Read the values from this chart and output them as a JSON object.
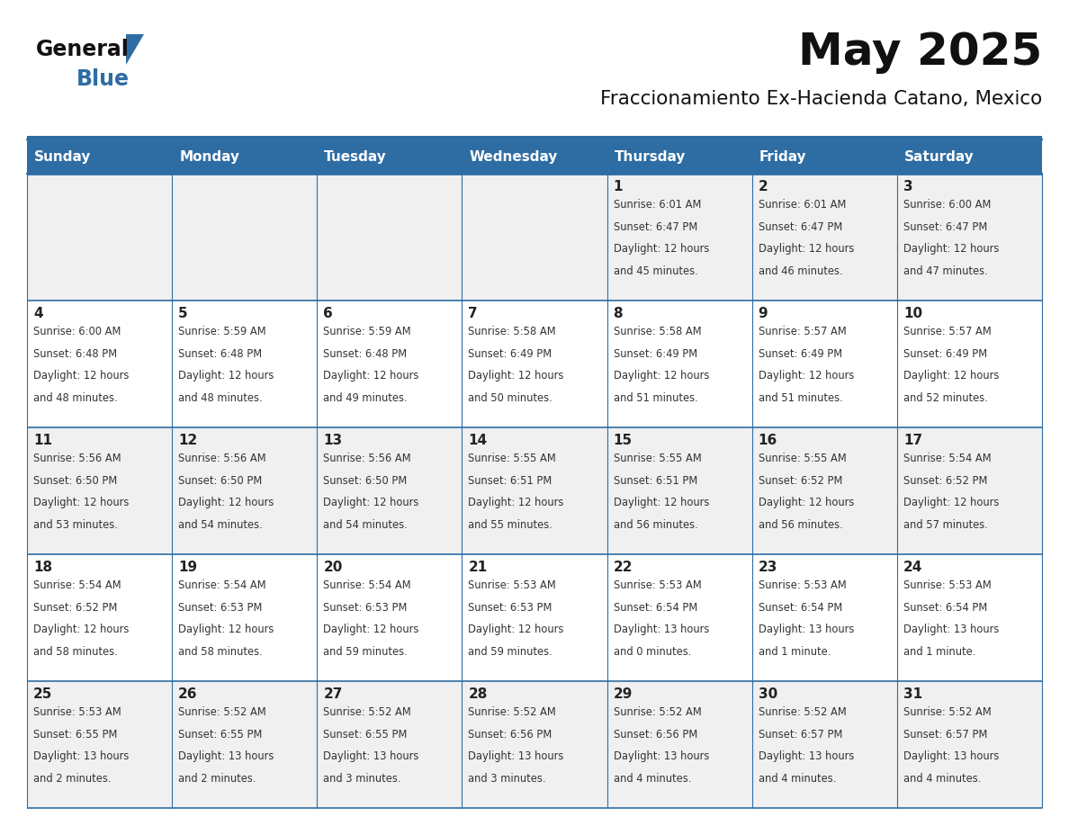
{
  "title": "May 2025",
  "subtitle": "Fraccionamiento Ex-Hacienda Catano, Mexico",
  "header_bg": "#2E6DA4",
  "header_text": "#FFFFFF",
  "day_names": [
    "Sunday",
    "Monday",
    "Tuesday",
    "Wednesday",
    "Thursday",
    "Friday",
    "Saturday"
  ],
  "cell_bg_odd": "#F0F0F0",
  "cell_bg_even": "#FFFFFF",
  "cell_border": "#2E6DA4",
  "number_color": "#222222",
  "text_color": "#333333",
  "logo_general_color": "#111111",
  "logo_blue_color": "#2E6DA4",
  "calendar": [
    [
      {
        "day": 0,
        "sunrise": "",
        "sunset": "",
        "daylight": ""
      },
      {
        "day": 0,
        "sunrise": "",
        "sunset": "",
        "daylight": ""
      },
      {
        "day": 0,
        "sunrise": "",
        "sunset": "",
        "daylight": ""
      },
      {
        "day": 0,
        "sunrise": "",
        "sunset": "",
        "daylight": ""
      },
      {
        "day": 1,
        "sunrise": "6:01 AM",
        "sunset": "6:47 PM",
        "daylight": "12 hours and 45 minutes."
      },
      {
        "day": 2,
        "sunrise": "6:01 AM",
        "sunset": "6:47 PM",
        "daylight": "12 hours and 46 minutes."
      },
      {
        "day": 3,
        "sunrise": "6:00 AM",
        "sunset": "6:47 PM",
        "daylight": "12 hours and 47 minutes."
      }
    ],
    [
      {
        "day": 4,
        "sunrise": "6:00 AM",
        "sunset": "6:48 PM",
        "daylight": "12 hours and 48 minutes."
      },
      {
        "day": 5,
        "sunrise": "5:59 AM",
        "sunset": "6:48 PM",
        "daylight": "12 hours and 48 minutes."
      },
      {
        "day": 6,
        "sunrise": "5:59 AM",
        "sunset": "6:48 PM",
        "daylight": "12 hours and 49 minutes."
      },
      {
        "day": 7,
        "sunrise": "5:58 AM",
        "sunset": "6:49 PM",
        "daylight": "12 hours and 50 minutes."
      },
      {
        "day": 8,
        "sunrise": "5:58 AM",
        "sunset": "6:49 PM",
        "daylight": "12 hours and 51 minutes."
      },
      {
        "day": 9,
        "sunrise": "5:57 AM",
        "sunset": "6:49 PM",
        "daylight": "12 hours and 51 minutes."
      },
      {
        "day": 10,
        "sunrise": "5:57 AM",
        "sunset": "6:49 PM",
        "daylight": "12 hours and 52 minutes."
      }
    ],
    [
      {
        "day": 11,
        "sunrise": "5:56 AM",
        "sunset": "6:50 PM",
        "daylight": "12 hours and 53 minutes."
      },
      {
        "day": 12,
        "sunrise": "5:56 AM",
        "sunset": "6:50 PM",
        "daylight": "12 hours and 54 minutes."
      },
      {
        "day": 13,
        "sunrise": "5:56 AM",
        "sunset": "6:50 PM",
        "daylight": "12 hours and 54 minutes."
      },
      {
        "day": 14,
        "sunrise": "5:55 AM",
        "sunset": "6:51 PM",
        "daylight": "12 hours and 55 minutes."
      },
      {
        "day": 15,
        "sunrise": "5:55 AM",
        "sunset": "6:51 PM",
        "daylight": "12 hours and 56 minutes."
      },
      {
        "day": 16,
        "sunrise": "5:55 AM",
        "sunset": "6:52 PM",
        "daylight": "12 hours and 56 minutes."
      },
      {
        "day": 17,
        "sunrise": "5:54 AM",
        "sunset": "6:52 PM",
        "daylight": "12 hours and 57 minutes."
      }
    ],
    [
      {
        "day": 18,
        "sunrise": "5:54 AM",
        "sunset": "6:52 PM",
        "daylight": "12 hours and 58 minutes."
      },
      {
        "day": 19,
        "sunrise": "5:54 AM",
        "sunset": "6:53 PM",
        "daylight": "12 hours and 58 minutes."
      },
      {
        "day": 20,
        "sunrise": "5:54 AM",
        "sunset": "6:53 PM",
        "daylight": "12 hours and 59 minutes."
      },
      {
        "day": 21,
        "sunrise": "5:53 AM",
        "sunset": "6:53 PM",
        "daylight": "12 hours and 59 minutes."
      },
      {
        "day": 22,
        "sunrise": "5:53 AM",
        "sunset": "6:54 PM",
        "daylight": "13 hours and 0 minutes."
      },
      {
        "day": 23,
        "sunrise": "5:53 AM",
        "sunset": "6:54 PM",
        "daylight": "13 hours and 1 minute."
      },
      {
        "day": 24,
        "sunrise": "5:53 AM",
        "sunset": "6:54 PM",
        "daylight": "13 hours and 1 minute."
      }
    ],
    [
      {
        "day": 25,
        "sunrise": "5:53 AM",
        "sunset": "6:55 PM",
        "daylight": "13 hours and 2 minutes."
      },
      {
        "day": 26,
        "sunrise": "5:52 AM",
        "sunset": "6:55 PM",
        "daylight": "13 hours and 2 minutes."
      },
      {
        "day": 27,
        "sunrise": "5:52 AM",
        "sunset": "6:55 PM",
        "daylight": "13 hours and 3 minutes."
      },
      {
        "day": 28,
        "sunrise": "5:52 AM",
        "sunset": "6:56 PM",
        "daylight": "13 hours and 3 minutes."
      },
      {
        "day": 29,
        "sunrise": "5:52 AM",
        "sunset": "6:56 PM",
        "daylight": "13 hours and 4 minutes."
      },
      {
        "day": 30,
        "sunrise": "5:52 AM",
        "sunset": "6:57 PM",
        "daylight": "13 hours and 4 minutes."
      },
      {
        "day": 31,
        "sunrise": "5:52 AM",
        "sunset": "6:57 PM",
        "daylight": "13 hours and 4 minutes."
      }
    ]
  ]
}
